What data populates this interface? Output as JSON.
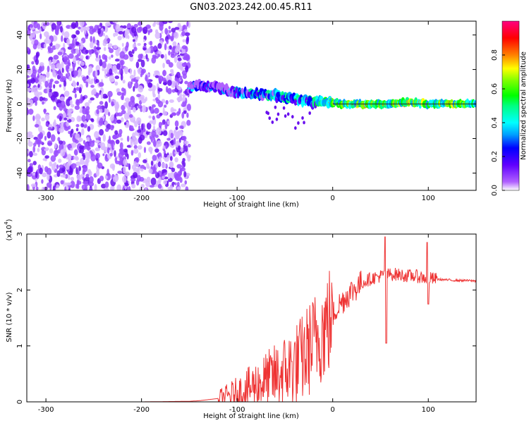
{
  "page": {
    "title": "GN03.2023.242.00.45.R11"
  },
  "chart_data": [
    {
      "type": "heatmap",
      "title": "GN03.2023.242.00.45.R11",
      "xlabel": "Height of straight line (km)",
      "ylabel": "Frequency (Hz)",
      "xlim": [
        -320,
        150
      ],
      "ylim": [
        -50,
        48
      ],
      "x_ticks": [
        -300,
        -200,
        -100,
        0,
        100
      ],
      "x_tick_labels": [
        "-300",
        "-200",
        "-100",
        "0",
        "100"
      ],
      "y_ticks": [
        -40,
        -20,
        0,
        20,
        40
      ],
      "y_tick_labels": [
        "-40",
        "-20",
        "0",
        "20",
        "40"
      ],
      "colorbar": {
        "label": "Normalized spectral amplitude",
        "range": [
          0,
          1
        ],
        "ticks": [
          0.0,
          0.2,
          0.4,
          0.6,
          0.8
        ],
        "tick_labels": [
          "0.0",
          "0.2",
          "0.4",
          "0.6",
          "0.8"
        ],
        "colors": [
          "#ffffff",
          "#b060ff",
          "#6000ff",
          "#0000ff",
          "#00a0ff",
          "#00ffff",
          "#00ff80",
          "#00ff00",
          "#80ff00",
          "#ffff00",
          "#ff8000",
          "#ff0000",
          "#ff0080"
        ]
      },
      "ridge": {
        "x": [
          -150,
          -140,
          -130,
          -120,
          -110,
          -100,
          -90,
          -80,
          -70,
          -60,
          -50,
          -40,
          -30,
          -20,
          -10,
          0,
          10,
          20,
          40,
          60,
          80,
          100,
          120,
          150
        ],
        "freq": [
          9,
          11,
          10,
          9,
          8,
          7,
          6,
          6,
          5,
          5,
          4,
          3,
          2,
          1,
          2,
          1,
          0,
          0,
          0,
          0,
          1,
          0,
          0,
          0
        ]
      },
      "noise_region": {
        "x_from": -320,
        "x_to": -150
      },
      "grid": false
    },
    {
      "type": "line",
      "xlabel": "Height of straight line (km)",
      "ylabel": "SNR (10 * v/v)",
      "y_scale_label": "(x10",
      "y_scale_exp": "4",
      "xlim": [
        -320,
        150
      ],
      "ylim": [
        0,
        3
      ],
      "x_ticks": [
        -300,
        -200,
        -100,
        0,
        100
      ],
      "x_tick_labels": [
        "-300",
        "-200",
        "-100",
        "0",
        "100"
      ],
      "y_ticks": [
        0,
        1,
        2,
        3
      ],
      "y_tick_labels": [
        "0",
        "1",
        "2",
        "3"
      ],
      "color": "#ee3333",
      "series": [
        {
          "x": [
            -320,
            -250,
            -200,
            -150,
            -140,
            -130,
            -120,
            -110,
            -100,
            -90,
            -80,
            -70,
            -60,
            -50,
            -40,
            -30,
            -25,
            -20,
            -15,
            -10,
            -5,
            0,
            5,
            10,
            15,
            20,
            25,
            30,
            35,
            40,
            45,
            50,
            55,
            60,
            65,
            70,
            75,
            80,
            85,
            90,
            95,
            100,
            105,
            110,
            120,
            130,
            140,
            150
          ],
          "y": [
            0.0,
            0.0,
            0.0,
            0.01,
            0.02,
            0.04,
            0.06,
            0.1,
            0.15,
            0.22,
            0.3,
            0.38,
            0.45,
            0.55,
            0.65,
            0.8,
            0.95,
            1.05,
            1.2,
            1.3,
            1.4,
            1.55,
            1.7,
            1.8,
            1.9,
            1.98,
            2.05,
            2.12,
            2.17,
            2.2,
            2.23,
            2.25,
            2.27,
            2.28,
            2.28,
            2.27,
            2.26,
            2.25,
            2.25,
            2.24,
            2.22,
            2.21,
            2.2,
            2.19,
            2.18,
            2.17,
            2.17,
            2.16
          ]
        }
      ],
      "grid": false
    }
  ]
}
